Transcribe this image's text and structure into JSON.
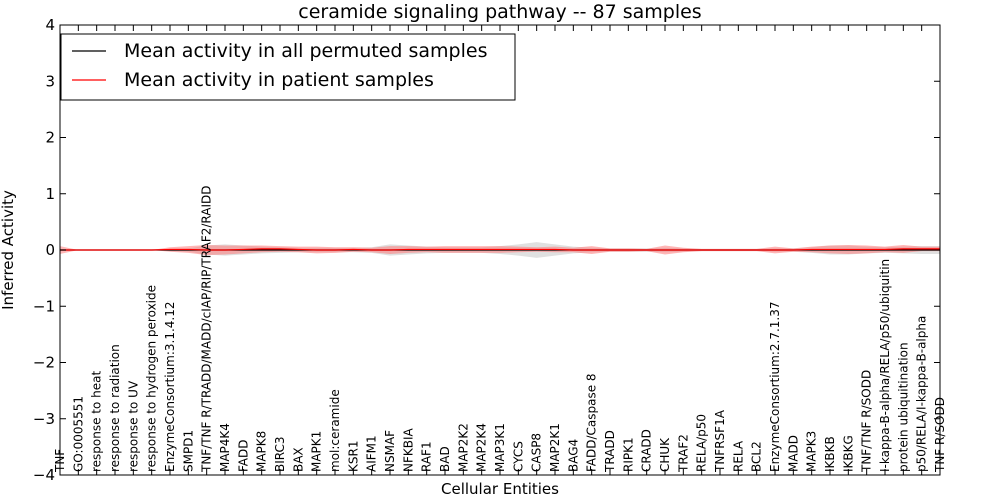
{
  "chart_data": {
    "type": "line",
    "title": "ceramide signaling pathway -- 87 samples",
    "xlabel": "Cellular Entities",
    "ylabel": "Inferred Activity",
    "ylim": [
      -4,
      4
    ],
    "yticks": [
      "−4",
      "−3",
      "−2",
      "−1",
      "0",
      "1",
      "2",
      "3",
      "4"
    ],
    "grid": false,
    "legend_position": "top-left",
    "categories": [
      "TNF",
      "GO:0005551",
      "response to heat",
      "response to radiation",
      "response to UV",
      "response to hydrogen peroxide",
      "EnzymeConsortium:3.1.4.12",
      "SMPD1",
      "TNF/TNF R/TRADD/MADD/cIAP/RIP/TRAF2/RAIDD",
      "MAP4K4",
      "FADD",
      "MAPK8",
      "BIRC3",
      "BAX",
      "MAPK1",
      "mol:ceramide",
      "KSR1",
      "AIFM1",
      "NSMAF",
      "NFKBIA",
      "RAF1",
      "BAD",
      "MAP2K2",
      "MAP2K4",
      "MAP3K1",
      "CYCS",
      "CASP8",
      "MAP2K1",
      "BAG4",
      "FADD/Caspase 8",
      "TRADD",
      "RIPK1",
      "CRADD",
      "CHUK",
      "TRAF2",
      "RELA/p50",
      "TNFRSF1A",
      "RELA",
      "BCL2",
      "EnzymeConsortium:2.7.1.37",
      "MADD",
      "MAPK3",
      "IKBKB",
      "IKBKG",
      "TNF/TNF R/SODD",
      "I-kappa-B-alpha/RELA/p50/ubiquitin",
      "protein ubiquitination",
      "p50/RELA/I-kappa-B-alpha",
      "TNF R/SODD"
    ],
    "series": [
      {
        "name": "Mean activity in all permuted samples",
        "color": "#000000",
        "band_color": "#bbbbbb",
        "values": [
          0,
          0,
          0,
          0,
          0,
          0,
          0,
          0,
          0,
          0,
          0,
          0,
          0,
          0,
          0,
          0,
          0,
          0,
          0,
          0,
          0,
          0,
          0,
          0,
          0,
          0,
          0,
          0,
          0,
          0,
          0,
          0,
          0,
          0,
          0,
          0,
          0,
          0,
          0,
          0,
          0,
          0,
          0,
          0,
          0,
          0,
          0,
          0,
          0
        ],
        "spread": [
          0,
          0,
          0,
          0,
          0,
          0,
          0.02,
          0.03,
          0.08,
          0.1,
          0.08,
          0.06,
          0.05,
          0.04,
          0.04,
          0.04,
          0.04,
          0.05,
          0.1,
          0.08,
          0.06,
          0.05,
          0.05,
          0.05,
          0.07,
          0.1,
          0.14,
          0.1,
          0.06,
          0.04,
          0.03,
          0.03,
          0.03,
          0.04,
          0.03,
          0.02,
          0.02,
          0.02,
          0.02,
          0.03,
          0.03,
          0.05,
          0.08,
          0.08,
          0.06,
          0.05,
          0.06,
          0.07,
          0.07
        ]
      },
      {
        "name": "Mean activity in patient samples",
        "color": "#ff0000",
        "band_color": "#ff7070",
        "values": [
          0,
          0,
          0,
          0,
          0,
          0,
          0.01,
          0.01,
          0,
          0,
          0.01,
          0.02,
          0.02,
          0.01,
          0,
          0,
          0.01,
          0,
          0,
          0.01,
          0.01,
          0.01,
          0.01,
          0.01,
          0.01,
          0.01,
          0.01,
          0.01,
          0,
          0,
          0,
          0,
          0,
          0,
          0,
          0,
          0,
          0,
          0,
          0,
          0,
          0.01,
          0.01,
          0.01,
          0.01,
          0.01,
          0.02,
          0.02,
          0.02
        ],
        "spread": [
          0.07,
          0,
          0,
          0,
          0,
          0,
          0.04,
          0.06,
          0.09,
          0.08,
          0.07,
          0.06,
          0.05,
          0.05,
          0.06,
          0.05,
          0.04,
          0.04,
          0.07,
          0.06,
          0.05,
          0.06,
          0.06,
          0.06,
          0.06,
          0.05,
          0.04,
          0.05,
          0.04,
          0.07,
          0.03,
          0.03,
          0.02,
          0.08,
          0.04,
          0.02,
          0.02,
          0.02,
          0.02,
          0.06,
          0.03,
          0.05,
          0.07,
          0.08,
          0.07,
          0.05,
          0.07,
          0.04,
          0.04
        ]
      }
    ]
  }
}
